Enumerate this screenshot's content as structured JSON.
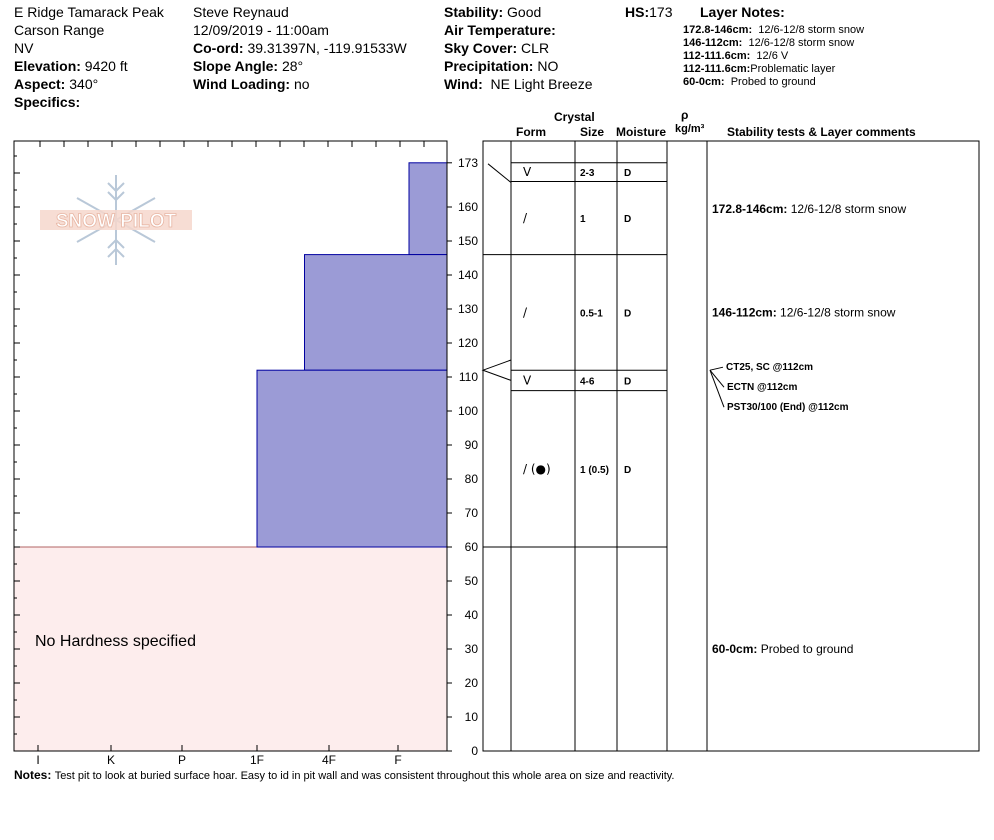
{
  "header": {
    "col1": [
      "E Ridge Tamarack Peak",
      "Carson Range",
      "NV"
    ],
    "elevation": {
      "label": "Elevation:",
      "value": "9420 ft"
    },
    "aspect": {
      "label": "Aspect:",
      "value": "340°"
    },
    "specifics": {
      "label": "Specifics:",
      "value": ""
    },
    "observer": "Steve Reynaud",
    "datetime": "12/09/2019 - 11:00am",
    "coord": {
      "label": "Co-ord:",
      "value": "39.31397N, -119.91533W"
    },
    "slope": {
      "label": "Slope Angle:",
      "value": "28°"
    },
    "wind_loading": {
      "label": "Wind Loading:",
      "value": "no"
    },
    "stability": {
      "label": "Stability:",
      "value": "Good"
    },
    "air_temp": {
      "label": "Air Temperature:",
      "value": ""
    },
    "sky": {
      "label": "Sky Cover:",
      "value": "CLR"
    },
    "precip": {
      "label": "Precipitation:",
      "value": "NO"
    },
    "wind": {
      "label": "Wind:",
      "value": "NE Light Breeze"
    },
    "hs": {
      "label": "HS:",
      "value": "173"
    }
  },
  "layer_notes": {
    "title": "Layer Notes:",
    "items": [
      {
        "range": "172.8-146cm:",
        "text": "12/6-12/8 storm snow"
      },
      {
        "range": "146-112cm:",
        "text": "12/6-12/8 storm snow"
      },
      {
        "range": "112-111.6cm:",
        "text": "12/6 V"
      },
      {
        "range": "112-111.6cm:",
        "text": "Problematic layer"
      },
      {
        "range": "60-0cm:",
        "text": "Probed to ground"
      }
    ]
  },
  "logo_text": "SNOW PILOT",
  "columns": {
    "crystal": "Crystal",
    "form": "Form",
    "size": "Size",
    "moisture": "Moisture",
    "rho": "ρ",
    "density_unit": "kg/m³",
    "comments": "Stability tests & Layer comments"
  },
  "no_hardness": "No Hardness specified",
  "notes": {
    "label": "Notes:",
    "text": "Test pit to look at buried surface hoar.  Easy to id in pit wall and was consistent throughout this whole area on size and reactivity."
  },
  "stability_tests": [
    "CT25, SC @112cm",
    "ECTN @112cm",
    "PST30/100 (End) @112cm"
  ],
  "layer_comments": [
    {
      "range": "172.8-146cm:",
      "text": "12/6-12/8 storm snow",
      "at": 159.4
    },
    {
      "range": "146-112cm:",
      "text": "12/6-12/8 storm snow",
      "at": 129
    },
    {
      "range": "60-0cm:",
      "text": "Probed to ground",
      "at": 30
    }
  ],
  "layers": [
    {
      "range": "172.8-146cm",
      "form": "V",
      "size": "2-3",
      "moisture": "D",
      "row_top": 173,
      "row_bottom": 167.5
    },
    {
      "range": "172.8-146cm",
      "form": "/",
      "size": "1",
      "moisture": "D",
      "row_top": 167.5,
      "row_bottom": 146
    },
    {
      "range": "146-112cm",
      "form": "/",
      "size": "0.5-1",
      "moisture": "D",
      "row_top": 146,
      "row_bottom": 112
    },
    {
      "range": "112-111.6cm",
      "form": "V",
      "size": "4-6",
      "moisture": "D",
      "row_top": 112,
      "row_bottom": 106
    },
    {
      "range": "106-60cm",
      "form": "/ (●)",
      "size": "1 (0.5)",
      "moisture": "D",
      "row_top": 106,
      "row_bottom": 60
    }
  ],
  "chart_data": {
    "type": "bar",
    "title": "",
    "xlabel": "",
    "ylabel": "",
    "ylim": [
      0,
      180
    ],
    "yticks": [
      0,
      10,
      20,
      30,
      40,
      50,
      60,
      70,
      80,
      90,
      100,
      110,
      120,
      130,
      140,
      150,
      160,
      173
    ],
    "hardness_scale": [
      "I",
      "K",
      "P",
      "1F",
      "4F",
      "F"
    ],
    "hardness_profile": [
      {
        "top": 173,
        "bottom": 146,
        "hardness_index": 0.2
      },
      {
        "top": 146,
        "bottom": 112,
        "hardness_index": 0.75
      },
      {
        "top": 112,
        "bottom": 60,
        "hardness_index": 1
      }
    ],
    "no_hardness_region": {
      "top": 60,
      "bottom": 0
    },
    "colors": {
      "layer": "#9b9bd6",
      "layer_border": "#0000a0",
      "no_hardness": "#fdeded",
      "no_hardness_border": "#a04040"
    }
  }
}
